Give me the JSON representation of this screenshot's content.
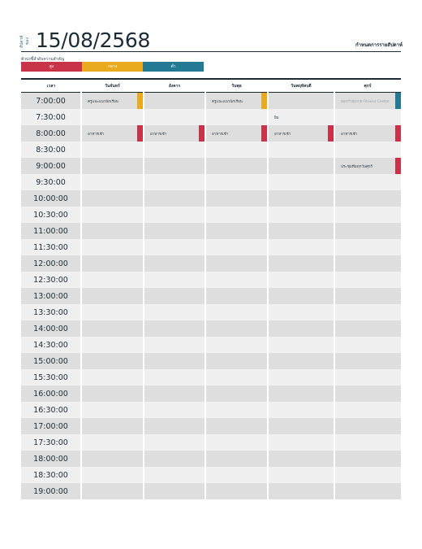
{
  "header": {
    "week_label": "สัปดาห์ของ",
    "date": "15/08/2568",
    "organization": "กำหนดการรายสัปดาห์"
  },
  "priority": {
    "caption": "ตัวบ่งชี้ลำดับความสำคัญ",
    "levels": [
      {
        "label": "สูง",
        "color": "#c8334a"
      },
      {
        "label": "กลาง",
        "color": "#eaaa1f"
      },
      {
        "label": "ต่ำ",
        "color": "#257a93"
      }
    ]
  },
  "schedule": {
    "columns": [
      "เวลา",
      "วันจันทร์",
      "อังคาร",
      "วันพุธ",
      "วันพฤหัสบดี",
      "ศุกร์"
    ],
    "times": [
      "7:00:00",
      "7:30:00",
      "8:00:00",
      "8:30:00",
      "9:00:00",
      "9:30:00",
      "10:00:00",
      "10:30:00",
      "11:00:00",
      "11:30:00",
      "12:00:00",
      "12:30:00",
      "13:00:00",
      "13:30:00",
      "14:00:00",
      "14:30:00",
      "15:00:00",
      "15:30:00",
      "16:00:00",
      "16:30:00",
      "17:00:00",
      "17:30:00",
      "18:00:00",
      "18:30:00",
      "19:00:00"
    ],
    "events": {
      "r0": {
        "mon": "ครูแนะแนวนักเรียน",
        "wed": "ครูแนะแนวนักเรียน",
        "fri": "ออกกำลังกาย Fitness Center"
      },
      "r1": {
        "thu": "ยิม"
      },
      "r2": {
        "mon": "อาหารเช้า",
        "tue": "อาหารเช้า",
        "wed": "อาหารเช้า",
        "thu": "อาหารเช้า",
        "fri": "อาหารเช้า"
      },
      "r4": {
        "fri": "ประชุมทีมทุกวันศุกร์"
      }
    }
  }
}
